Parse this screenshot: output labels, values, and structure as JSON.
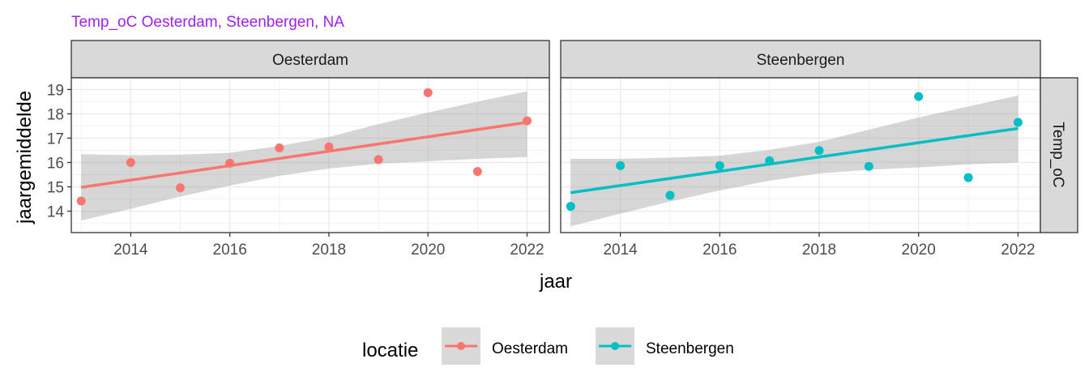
{
  "chart_data": {
    "type": "scatter",
    "title": "Temp_oC Oesterdam, Steenbergen, NA",
    "xlabel": "jaar",
    "ylabel": "jaargemiddelde",
    "row_strip": "Temp_oC",
    "xlim": [
      2012.8,
      2022.45
    ],
    "ylim": [
      13.12,
      19.48
    ],
    "x_ticks": [
      2014,
      2016,
      2018,
      2020,
      2022
    ],
    "y_ticks": [
      14,
      15,
      16,
      17,
      18,
      19
    ],
    "grid": true,
    "legend": {
      "title": "locatie",
      "position": "bottom"
    },
    "panels": [
      {
        "name": "Oesterdam",
        "color": "#F8766D",
        "x": [
          2013,
          2014,
          2015,
          2016,
          2017,
          2018,
          2019,
          2020,
          2021,
          2022
        ],
        "y": [
          14.42,
          16.0,
          14.96,
          15.97,
          16.6,
          16.64,
          16.12,
          18.87,
          15.63,
          17.71
        ],
        "trend": {
          "x": [
            2013,
            2022
          ],
          "y": [
            14.98,
            17.65
          ]
        },
        "band": {
          "x": [
            2013,
            2014,
            2015,
            2016,
            2017,
            2018,
            2019,
            2020,
            2021,
            2022
          ],
          "lower": [
            13.62,
            14.1,
            14.6,
            15.05,
            15.45,
            15.75,
            15.95,
            16.05,
            16.15,
            16.22
          ],
          "upper": [
            16.34,
            16.3,
            16.32,
            16.4,
            16.68,
            17.05,
            17.58,
            18.05,
            18.5,
            18.92
          ]
        }
      },
      {
        "name": "Steenbergen",
        "color": "#00BFC4",
        "x": [
          2013,
          2014,
          2015,
          2016,
          2017,
          2018,
          2019,
          2020,
          2021,
          2022
        ],
        "y": [
          14.2,
          15.87,
          14.65,
          15.87,
          16.07,
          16.49,
          15.84,
          18.71,
          15.38,
          17.65
        ],
        "trend": {
          "x": [
            2013,
            2022
          ],
          "y": [
            14.76,
            17.4
          ]
        },
        "band": {
          "x": [
            2013,
            2014,
            2015,
            2016,
            2017,
            2018,
            2019,
            2020,
            2021,
            2022
          ],
          "lower": [
            13.38,
            13.9,
            14.4,
            14.85,
            15.25,
            15.55,
            15.7,
            15.8,
            15.92,
            16.0
          ],
          "upper": [
            16.15,
            16.15,
            16.2,
            16.28,
            16.52,
            16.85,
            17.35,
            17.85,
            18.3,
            18.75
          ]
        }
      }
    ]
  }
}
